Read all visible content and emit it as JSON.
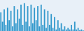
{
  "chart_data": {
    "type": "bar",
    "categories": [
      null,
      null,
      null,
      null,
      null,
      null,
      null,
      null,
      null,
      null,
      null,
      null,
      null,
      null,
      null,
      null,
      null,
      null,
      null,
      null,
      null,
      null,
      null,
      null,
      null,
      null,
      null,
      null,
      null,
      null,
      null,
      null,
      null,
      null,
      null,
      null,
      null,
      null,
      null,
      null,
      null,
      null,
      null,
      null,
      null,
      null,
      null,
      null,
      null,
      null
    ],
    "values": [
      60,
      30,
      70,
      20,
      75,
      35,
      65,
      15,
      80,
      25,
      70,
      40,
      85,
      20,
      90,
      30,
      80,
      15,
      85,
      25,
      75,
      35,
      80,
      15,
      85,
      20,
      70,
      10,
      65,
      20,
      55,
      10,
      45,
      5,
      35,
      10,
      25,
      5,
      15,
      5,
      10,
      5,
      20,
      5,
      30,
      5,
      10,
      3,
      5,
      2
    ],
    "color": "#3399cc",
    "ylim": [
      0,
      100
    ],
    "grid": false,
    "tick_labels": false
  }
}
